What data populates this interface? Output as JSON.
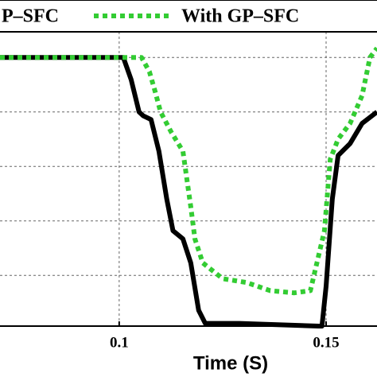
{
  "chart_data": {
    "type": "line",
    "xlabel": "Time (S)",
    "xlim": [
      0.0712,
      0.1623
    ],
    "ylim": [
      0.07,
      5.47
    ],
    "xticks": [
      0.1,
      0.15
    ],
    "grid": true,
    "series": [
      {
        "name": "P–SFC",
        "color": "#000000",
        "style": "solid",
        "x": [
          0.0712,
          0.101,
          0.1029,
          0.1048,
          0.1058,
          0.1077,
          0.1096,
          0.1115,
          0.113,
          0.1154,
          0.1173,
          0.1192,
          0.1208,
          0.129,
          0.1481,
          0.149,
          0.15,
          0.1515,
          0.1529,
          0.1558,
          0.1587,
          0.1623
        ],
        "values": [
          5.0,
          5.0,
          4.59,
          4.0,
          3.93,
          3.86,
          3.28,
          2.4,
          1.82,
          1.67,
          1.23,
          0.36,
          0.12,
          0.12,
          0.07,
          0.07,
          0.8,
          2.4,
          3.2,
          3.42,
          3.79,
          4.0
        ]
      },
      {
        "name": "With GP–SFC",
        "color": "#33cc33",
        "style": "dotted",
        "x": [
          0.0712,
          0.1054,
          0.1073,
          0.1087,
          0.11,
          0.1125,
          0.1154,
          0.1173,
          0.1183,
          0.1202,
          0.125,
          0.1308,
          0.1365,
          0.1423,
          0.1462,
          0.1496,
          0.151,
          0.1529,
          0.1558,
          0.1587,
          0.1606,
          0.1623
        ],
        "values": [
          5.0,
          5.0,
          4.74,
          4.37,
          4.0,
          3.64,
          3.28,
          2.26,
          1.67,
          1.23,
          0.94,
          0.87,
          0.72,
          0.68,
          0.72,
          1.82,
          3.13,
          3.5,
          3.79,
          4.3,
          5.0,
          5.17
        ]
      }
    ]
  }
}
